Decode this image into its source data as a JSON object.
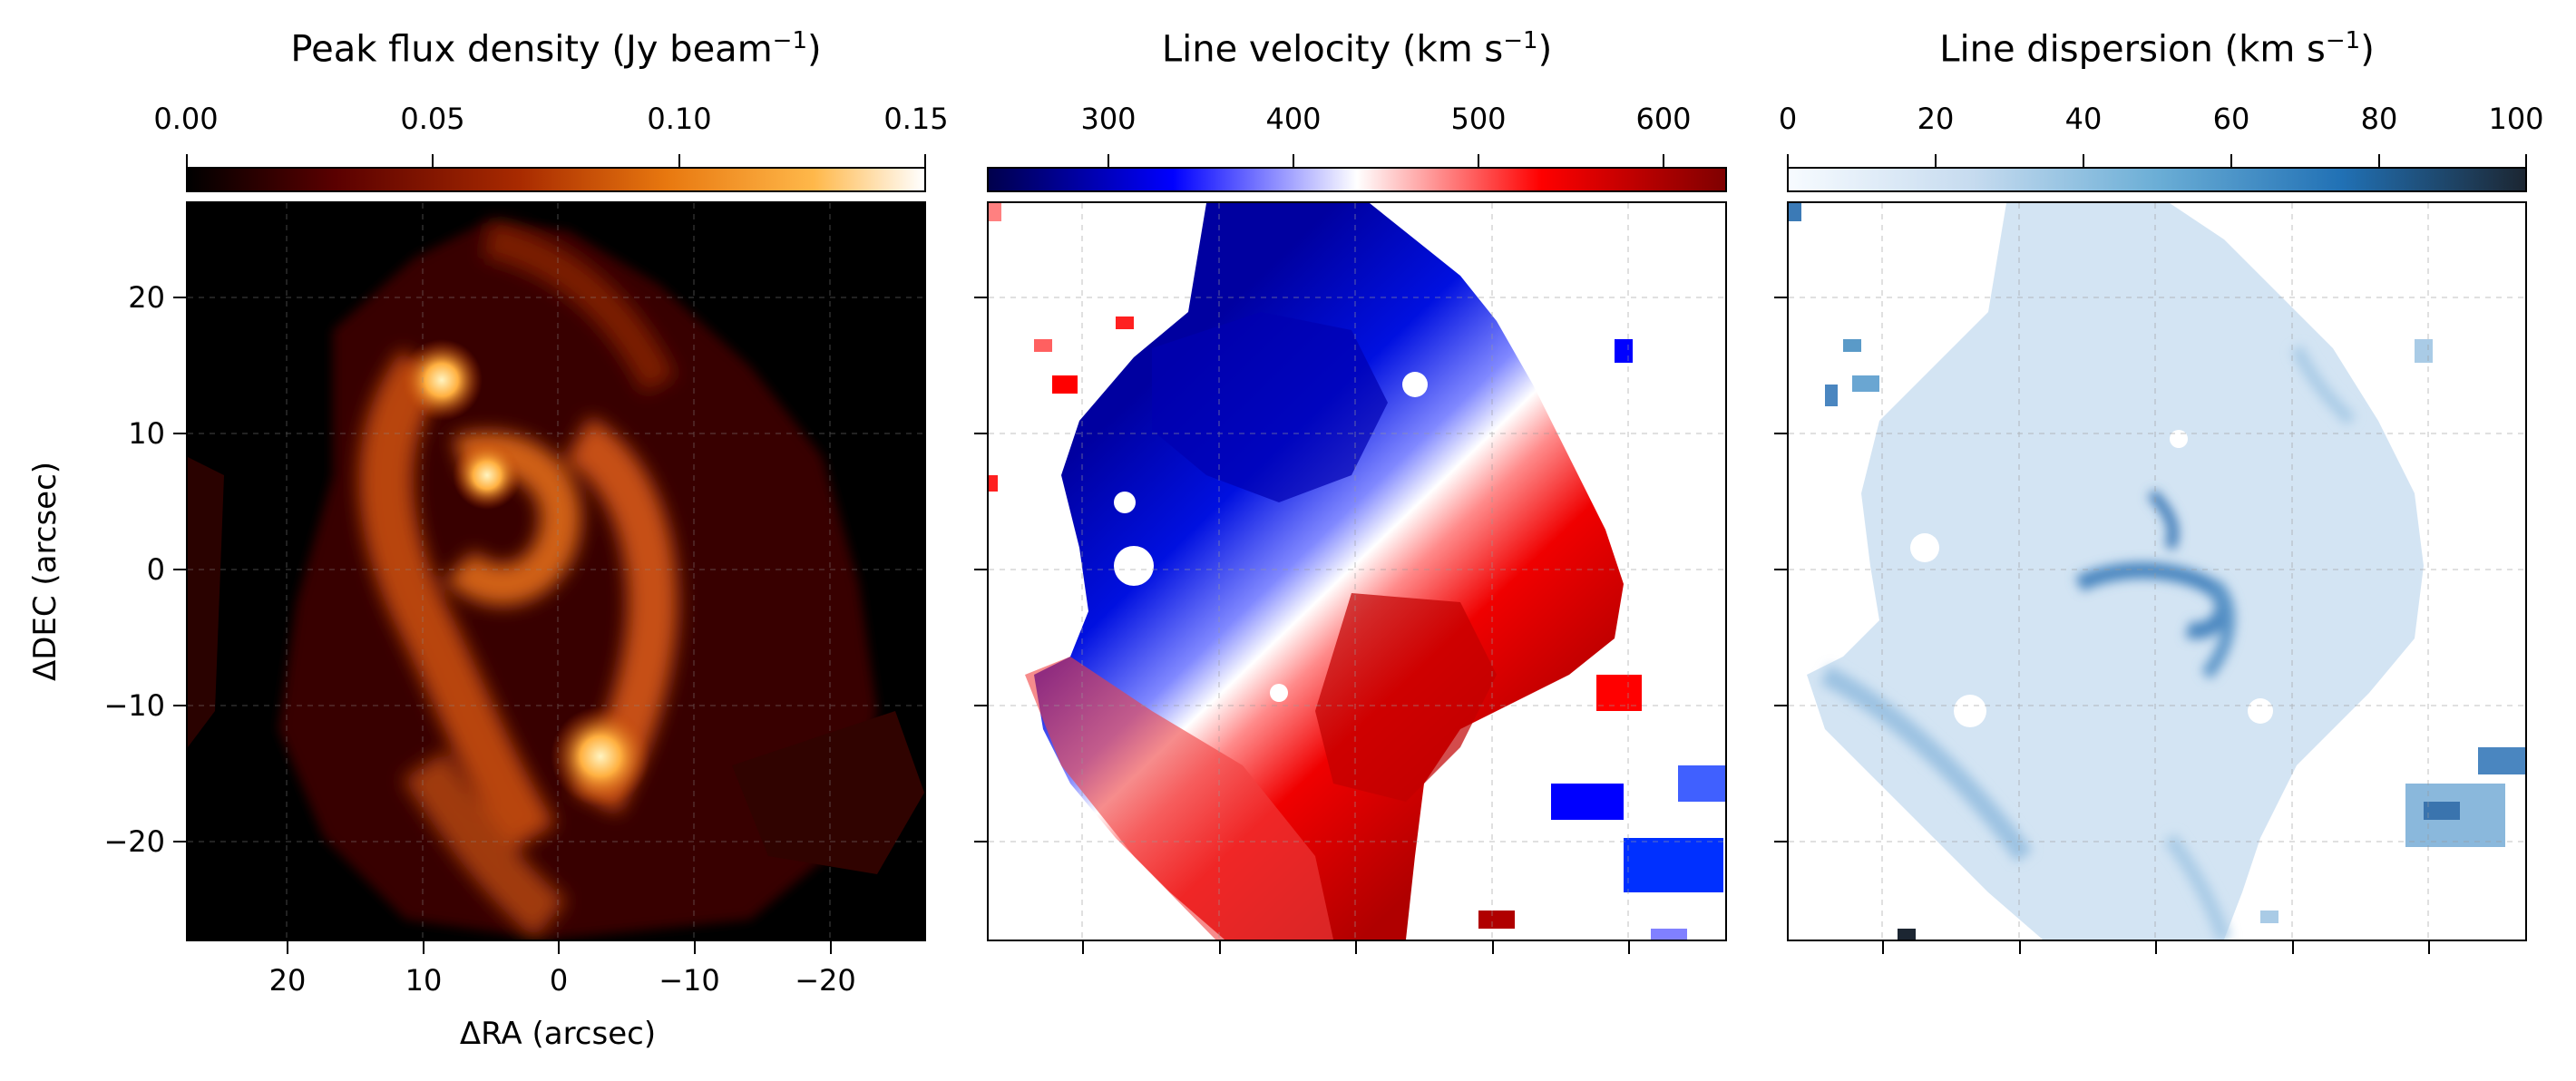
{
  "chart_data": [
    {
      "type": "heatmap",
      "title": "Peak flux density (Jy beam",
      "title_sup": "−1",
      "title_tail": ")",
      "colormap": "afmhot",
      "colorbar_ticks": [
        "0.00",
        "0.05",
        "0.10",
        "0.15"
      ],
      "colorbar_range": [
        0.0,
        0.15
      ],
      "xlabel": "ΔRA (arcsec)",
      "ylabel": "ΔDEC (arcsec)",
      "x_ticks": [
        "20",
        "10",
        "0",
        "−10",
        "−20"
      ],
      "y_ticks": [
        "20",
        "10",
        "0",
        "−10",
        "−20"
      ],
      "x_range": [
        27,
        -27
      ],
      "y_range": [
        -27,
        27
      ],
      "grid": true
    },
    {
      "type": "heatmap",
      "title": "Line velocity (km s",
      "title_sup": "−1",
      "title_tail": ")",
      "colormap": "seismic",
      "colorbar_ticks": [
        "300",
        "400",
        "500",
        "600"
      ],
      "colorbar_range": [
        235,
        635
      ],
      "x_range": [
        27,
        -27
      ],
      "y_range": [
        -27,
        27
      ],
      "grid": true
    },
    {
      "type": "heatmap",
      "title": "Line dispersion (km s",
      "title_sup": "−1",
      "title_tail": ")",
      "colormap": "Blues",
      "colorbar_ticks": [
        "0",
        "20",
        "40",
        "60",
        "80",
        "100"
      ],
      "colorbar_range": [
        0,
        100
      ],
      "x_range": [
        27,
        -27
      ],
      "y_range": [
        -27,
        27
      ],
      "grid": true
    }
  ],
  "colors": {
    "afmhot": [
      "#000000",
      "#7a0a00",
      "#e06a10",
      "#ffcc60",
      "#ffffff"
    ],
    "seismic": [
      "#00004c",
      "#0000ff",
      "#ffffff",
      "#ff0000",
      "#7f0000"
    ],
    "blues": [
      "#f7fbff",
      "#9ecae1",
      "#4292c6",
      "#08519c",
      "#1f2a3a"
    ]
  }
}
